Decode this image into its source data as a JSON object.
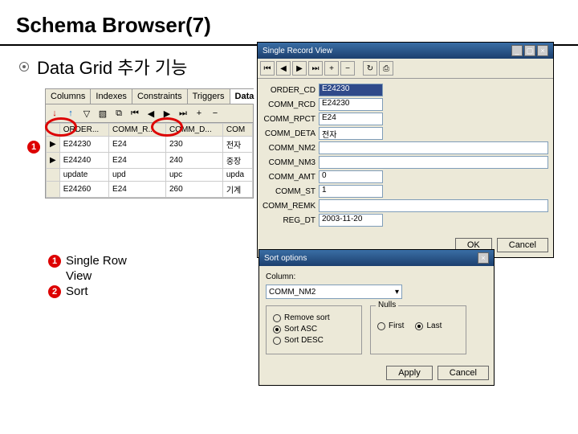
{
  "title": "Schema Browser(7)",
  "subtitle": "Data Grid 추가 기능",
  "tabs": [
    "Columns",
    "Indexes",
    "Constraints",
    "Triggers",
    "Data"
  ],
  "activeTab": "Data",
  "grid": {
    "headers": [
      "",
      "ORDER...",
      "COMM_R...",
      "COMM_D...",
      "COM"
    ],
    "rows": [
      [
        "▶",
        "E24230",
        "E24",
        "230",
        "전자"
      ],
      [
        "▶",
        "E24240",
        "E24",
        "240",
        "중장"
      ],
      [
        "",
        "update",
        "upd",
        "upc",
        "upda"
      ],
      [
        "",
        "E24260",
        "E24",
        "260",
        "기계"
      ]
    ]
  },
  "legend": [
    {
      "num": "1",
      "text": "Single Row"
    },
    {
      "num": "",
      "text": "View"
    },
    {
      "num": "2",
      "text": "Sort"
    }
  ],
  "srv": {
    "title": "Single Record View",
    "fields": [
      {
        "label": "ORDER_CD",
        "value": "E24230",
        "cls": "short blue"
      },
      {
        "label": "COMM_RCD",
        "value": "E24230",
        "cls": "short"
      },
      {
        "label": "COMM_RPCT",
        "value": "E24",
        "cls": "short"
      },
      {
        "label": "COMM_DETA",
        "value": "전자",
        "cls": "short"
      },
      {
        "label": "COMM_NM2",
        "value": "",
        "cls": ""
      },
      {
        "label": "COMM_NM3",
        "value": "",
        "cls": ""
      },
      {
        "label": "COMM_AMT",
        "value": "0",
        "cls": "short"
      },
      {
        "label": "COMM_ST",
        "value": "1",
        "cls": "short"
      },
      {
        "label": "COMM_REMK",
        "value": "",
        "cls": ""
      },
      {
        "label": "REG_DT",
        "value": "2003-11-20",
        "cls": "short"
      }
    ],
    "btnOk": "OK",
    "btnCancel": "Cancel"
  },
  "sort": {
    "title": "Sort options",
    "columnLabel": "Column:",
    "columnValue": "COMM_NM2",
    "sortOpts": [
      "Remove sort",
      "Sort ASC",
      "Sort DESC"
    ],
    "sortSel": 1,
    "nullsLabel": "Nulls",
    "nullsOpts": [
      "First",
      "Last"
    ],
    "nullsSel": 1,
    "btnApply": "Apply",
    "btnCancel": "Cancel"
  }
}
